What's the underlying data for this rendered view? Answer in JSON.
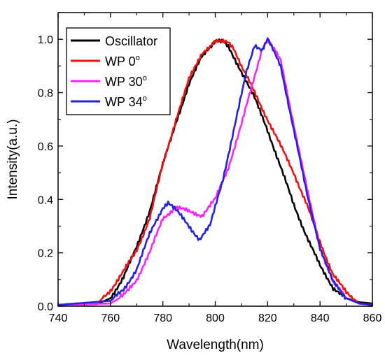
{
  "chart_data": {
    "type": "line",
    "xlabel": "Wavelength(nm)",
    "ylabel": "Intensity(a.u.)",
    "xlim": [
      740,
      860
    ],
    "ylim": [
      0,
      1.1
    ],
    "xticks": [
      "740",
      "760",
      "780",
      "800",
      "820",
      "840",
      "860"
    ],
    "yticks": [
      "0.0",
      "0.2",
      "0.4",
      "0.6",
      "0.8",
      "1.0"
    ],
    "legend_position": "top-left",
    "series": [
      {
        "name": "Oscillator",
        "legend": {
          "base": "Oscillator",
          "sup": ""
        },
        "color": "#000000",
        "x": [
          740,
          755,
          760,
          765,
          770,
          775,
          780,
          785,
          790,
          795,
          800,
          803,
          805,
          810,
          815,
          820,
          825,
          830,
          835,
          840,
          845,
          850,
          855,
          860
        ],
        "y": [
          0.005,
          0.008,
          0.03,
          0.11,
          0.22,
          0.36,
          0.53,
          0.69,
          0.83,
          0.94,
          0.995,
          0.99,
          0.97,
          0.88,
          0.78,
          0.66,
          0.52,
          0.38,
          0.26,
          0.15,
          0.07,
          0.03,
          0.015,
          0.01
        ]
      },
      {
        "name": "WP 0°",
        "legend": {
          "base": "WP 0",
          "sup": "o"
        },
        "color": "#ee1111",
        "x": [
          740,
          755,
          760,
          765,
          770,
          775,
          780,
          785,
          790,
          795,
          800,
          805,
          807,
          810,
          815,
          820,
          825,
          830,
          835,
          840,
          845,
          850,
          855,
          860
        ],
        "y": [
          0.005,
          0.01,
          0.06,
          0.13,
          0.21,
          0.33,
          0.53,
          0.7,
          0.85,
          0.95,
          0.99,
          0.99,
          0.97,
          0.9,
          0.8,
          0.7,
          0.6,
          0.5,
          0.38,
          0.24,
          0.12,
          0.05,
          0.01,
          0.005
        ]
      },
      {
        "name": "WP 30°",
        "legend": {
          "base": "WP 30",
          "sup": "o"
        },
        "color": "#ff22ff",
        "x": [
          740,
          760,
          765,
          770,
          775,
          780,
          785,
          790,
          795,
          800,
          805,
          810,
          815,
          818,
          820,
          825,
          830,
          835,
          840,
          845,
          850,
          855,
          860
        ],
        "y": [
          0.005,
          0.01,
          0.04,
          0.1,
          0.2,
          0.33,
          0.37,
          0.355,
          0.34,
          0.4,
          0.52,
          0.68,
          0.86,
          0.97,
          1.0,
          0.92,
          0.68,
          0.44,
          0.22,
          0.09,
          0.03,
          0.01,
          0.005
        ]
      },
      {
        "name": "WP 34°",
        "legend": {
          "base": "WP 34",
          "sup": "o"
        },
        "color": "#2222dd",
        "x": [
          740,
          760,
          765,
          770,
          775,
          780,
          782,
          785,
          790,
          794,
          798,
          803,
          808,
          812,
          815,
          818,
          820,
          825,
          830,
          835,
          840,
          845,
          850,
          855,
          860
        ],
        "y": [
          0.005,
          0.02,
          0.06,
          0.14,
          0.27,
          0.37,
          0.39,
          0.36,
          0.3,
          0.25,
          0.3,
          0.48,
          0.7,
          0.88,
          0.98,
          0.96,
          1.0,
          0.9,
          0.66,
          0.42,
          0.22,
          0.09,
          0.03,
          0.01,
          0.005
        ]
      }
    ]
  }
}
